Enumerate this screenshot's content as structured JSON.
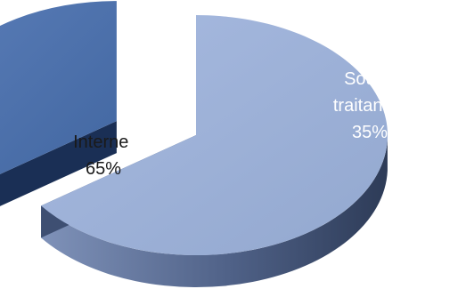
{
  "chart_data": {
    "type": "pie",
    "title": "",
    "slices": [
      {
        "name": "Interne",
        "value": 65,
        "value_label": "65%",
        "color": "#9bb0d6",
        "side_color": "#56698e"
      },
      {
        "name": "Sous-traitance",
        "value": 35,
        "value_label": "35%",
        "color": "#4b6fa8",
        "side_color": "#1e3660",
        "exploded": true
      }
    ],
    "legend": "none"
  }
}
